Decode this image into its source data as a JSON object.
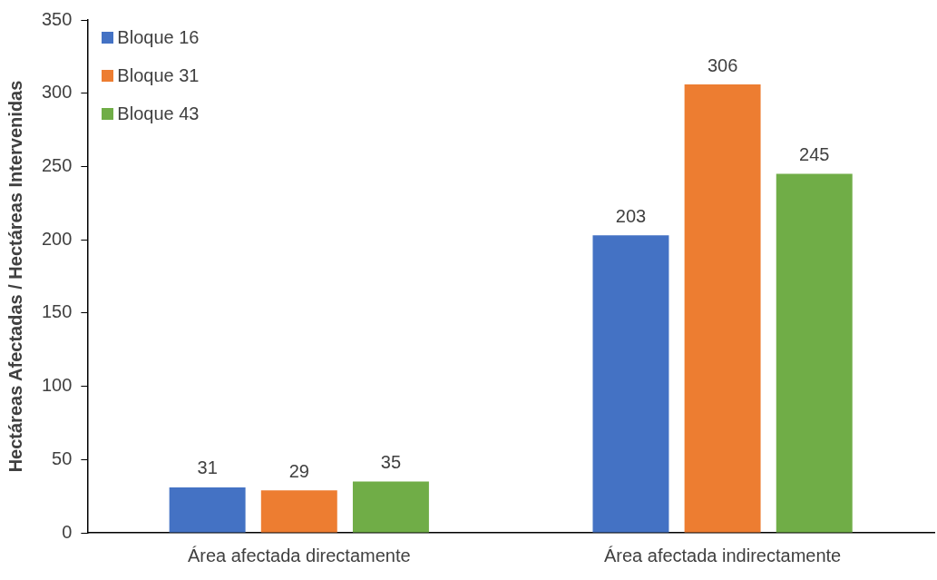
{
  "chart_data": {
    "type": "bar",
    "ylabel": "Hectáreas Afectadas / Hectáreas Intervenidas",
    "categories": [
      "Área afectada directamente",
      "Área afectada indirectamente"
    ],
    "series": [
      {
        "name": "Bloque 16",
        "color": "#4472c4",
        "values": [
          31,
          203
        ]
      },
      {
        "name": "Bloque 31",
        "color": "#ed7d31",
        "values": [
          29,
          306
        ]
      },
      {
        "name": "Bloque 43",
        "color": "#70ad47",
        "values": [
          35,
          245
        ]
      }
    ],
    "ylim": [
      0,
      350
    ],
    "yticks": [
      0,
      50,
      100,
      150,
      200,
      250,
      300,
      350
    ],
    "grid": false,
    "legend": "top left",
    "data_labels": true
  }
}
